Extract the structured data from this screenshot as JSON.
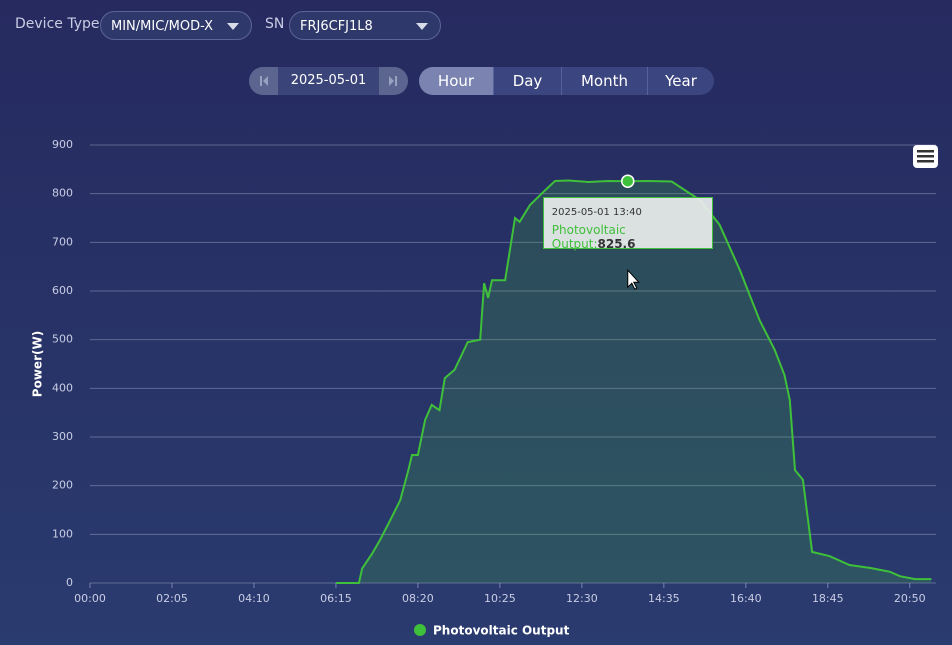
{
  "filters": {
    "device_type_label": "Device Type",
    "device_type": "MIN/MIC/MOD-X",
    "sn_label": "SN",
    "sn": "FRJ6CFJ1L8"
  },
  "date_picker": {
    "date": "2025-05-01"
  },
  "tabs": [
    "Hour",
    "Day",
    "Month",
    "Year"
  ],
  "active_tab": "Hour",
  "chart_data": {
    "type": "area",
    "y_label": "Power(W)",
    "x": [
      "06:15",
      "06:50",
      "06:55",
      "07:10",
      "07:22",
      "07:40",
      "07:53",
      "08:05",
      "08:11",
      "08:20",
      "08:31",
      "08:41",
      "08:53",
      "09:01",
      "09:16",
      "09:36",
      "09:55",
      "10:01",
      "10:07",
      "10:13",
      "10:33",
      "10:48",
      "10:55",
      "11:11",
      "11:34",
      "11:49",
      "12:10",
      "12:40",
      "13:10",
      "13:40",
      "14:10",
      "14:47",
      "15:30",
      "16:00",
      "16:31",
      "17:01",
      "17:24",
      "17:39",
      "17:47",
      "17:55",
      "18:07",
      "18:21",
      "18:48",
      "19:18",
      "19:49",
      "20:20",
      "20:35",
      "20:58",
      "21:23"
    ],
    "series": [
      {
        "name": "Photovoltaic Output",
        "color": "#3fc03a",
        "values": [
          0,
          0,
          30,
          60,
          88,
          135,
          170,
          230,
          263,
          263,
          335,
          366,
          355,
          421,
          438,
          495,
          500,
          616,
          586,
          622,
          622,
          750,
          742,
          777,
          807,
          826,
          827,
          824,
          826,
          825.6,
          826,
          825,
          787,
          736,
          643,
          540,
          479,
          427,
          376,
          232,
          212,
          64,
          55,
          37,
          31,
          23,
          14,
          8,
          8
        ]
      }
    ],
    "xlim": [
      "00:00",
      "21:30"
    ],
    "xticks": [
      "00:00",
      "02:05",
      "04:10",
      "06:15",
      "08:20",
      "10:25",
      "12:30",
      "14:35",
      "16:40",
      "18:45",
      "20:50"
    ],
    "ylim": [
      0,
      900
    ],
    "yticks": [
      0,
      100,
      200,
      300,
      400,
      500,
      600,
      700,
      800,
      900
    ],
    "grid": true,
    "tooltip": {
      "title": "2025-05-01 13:40",
      "label": "Photovoltaic Output:",
      "x": "13:40"
    }
  }
}
